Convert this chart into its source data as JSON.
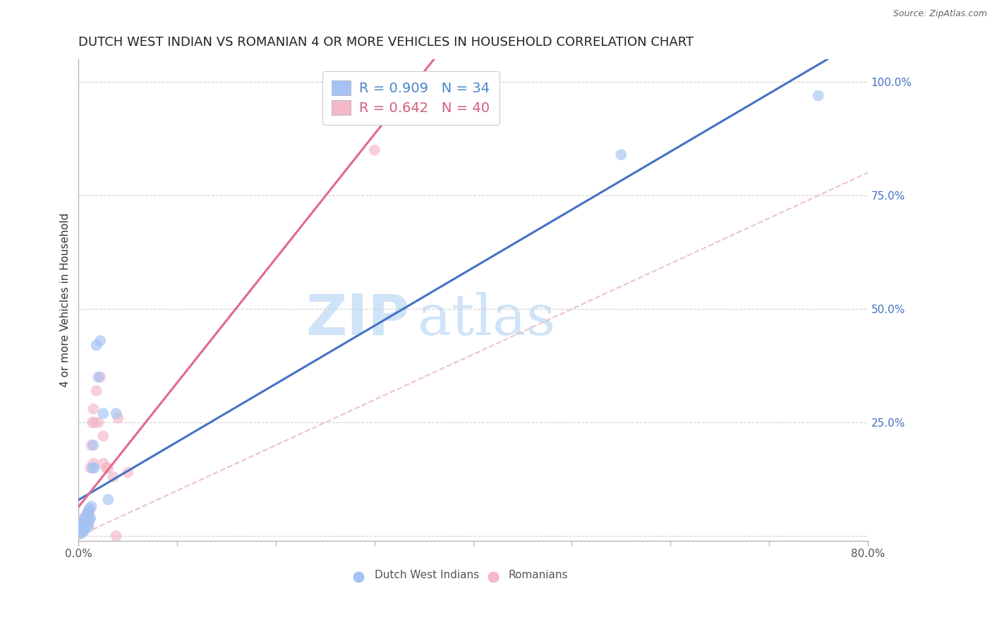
{
  "title": "DUTCH WEST INDIAN VS ROMANIAN 4 OR MORE VEHICLES IN HOUSEHOLD CORRELATION CHART",
  "source": "Source: ZipAtlas.com",
  "ylabel": "4 or more Vehicles in Household",
  "xlim": [
    0.0,
    0.8
  ],
  "ylim": [
    -0.01,
    1.05
  ],
  "yticks_right": [
    0.0,
    0.25,
    0.5,
    0.75,
    1.0
  ],
  "ytick_labels_right": [
    "",
    "25.0%",
    "50.0%",
    "75.0%",
    "100.0%"
  ],
  "xtick_positions": [
    0.0,
    0.1,
    0.2,
    0.3,
    0.4,
    0.5,
    0.6,
    0.7,
    0.8
  ],
  "xtick_labels": [
    "0.0%",
    "",
    "",
    "",
    "",
    "",
    "",
    "",
    "80.0%"
  ],
  "legend_label_colors": [
    "#4a86c8",
    "#d45c7a"
  ],
  "dutch_west_indian_x": [
    0.002,
    0.003,
    0.003,
    0.004,
    0.004,
    0.005,
    0.005,
    0.005,
    0.006,
    0.006,
    0.007,
    0.007,
    0.008,
    0.008,
    0.009,
    0.009,
    0.01,
    0.01,
    0.01,
    0.011,
    0.011,
    0.012,
    0.013,
    0.014,
    0.015,
    0.016,
    0.018,
    0.02,
    0.022,
    0.025,
    0.03,
    0.038,
    0.55,
    0.75
  ],
  "dutch_west_indian_y": [
    0.005,
    0.01,
    0.02,
    0.015,
    0.03,
    0.01,
    0.02,
    0.035,
    0.015,
    0.025,
    0.02,
    0.04,
    0.025,
    0.045,
    0.03,
    0.05,
    0.02,
    0.035,
    0.055,
    0.035,
    0.06,
    0.04,
    0.065,
    0.15,
    0.2,
    0.15,
    0.42,
    0.35,
    0.43,
    0.27,
    0.08,
    0.27,
    0.84,
    0.97
  ],
  "romanian_x": [
    0.001,
    0.002,
    0.002,
    0.003,
    0.003,
    0.004,
    0.004,
    0.004,
    0.005,
    0.005,
    0.005,
    0.006,
    0.006,
    0.007,
    0.007,
    0.008,
    0.008,
    0.009,
    0.009,
    0.01,
    0.01,
    0.011,
    0.012,
    0.013,
    0.014,
    0.015,
    0.015,
    0.016,
    0.018,
    0.02,
    0.022,
    0.025,
    0.025,
    0.028,
    0.03,
    0.035,
    0.038,
    0.04,
    0.05,
    0.3
  ],
  "romanian_y": [
    0.005,
    0.01,
    0.02,
    0.015,
    0.025,
    0.01,
    0.02,
    0.03,
    0.015,
    0.025,
    0.04,
    0.02,
    0.035,
    0.025,
    0.04,
    0.025,
    0.045,
    0.03,
    0.05,
    0.025,
    0.05,
    0.055,
    0.15,
    0.2,
    0.25,
    0.16,
    0.28,
    0.25,
    0.32,
    0.25,
    0.35,
    0.16,
    0.22,
    0.15,
    0.15,
    0.13,
    0.0,
    0.26,
    0.14,
    0.85
  ],
  "blue_dot_color": "#a4c2f4",
  "pink_dot_color": "#f4b8c8",
  "blue_line_color": "#4472c4",
  "pink_line_color": "#e06890",
  "ref_line_color": "#e8b4b8",
  "grid_color": "#d0d0d0",
  "watermark_color": "#d0e4f8",
  "background_color": "#ffffff",
  "title_fontsize": 13,
  "axis_label_fontsize": 11,
  "tick_fontsize": 11,
  "right_tick_color": "#4472c4",
  "dot_size": 130,
  "dot_alpha": 0.65
}
